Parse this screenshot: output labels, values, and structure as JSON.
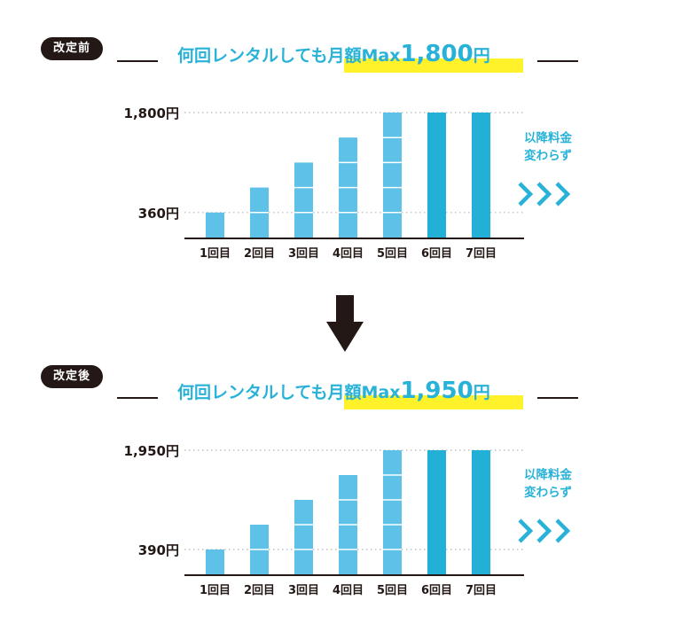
{
  "colors": {
    "dark": "#231815",
    "cyan": "#29b2d8",
    "bar_light": "#5dc1e8",
    "bar_dark": "#22b0d6",
    "highlight": "#fff12a"
  },
  "icons": {
    "chevrons": "triple-chevron-right-icon",
    "down_arrow": "down-arrow-icon"
  },
  "panels": [
    {
      "badge": "改定前",
      "headline_prefix": "何回レンタルしても月額Max",
      "headline_amount": "1,800",
      "headline_unit": "円",
      "side_note_line1": "以降料金",
      "side_note_line2": "変わらず"
    },
    {
      "badge": "改定後",
      "headline_prefix": "何回レンタルしても月額Max",
      "headline_amount": "1,950",
      "headline_unit": "円",
      "side_note_line1": "以降料金",
      "side_note_line2": "変わらず"
    }
  ],
  "chart_data": [
    {
      "type": "bar",
      "categories": [
        "1回目",
        "2回目",
        "3回目",
        "4回目",
        "5回目",
        "6回目",
        "7回目"
      ],
      "values": [
        360,
        720,
        1080,
        1440,
        1800,
        1800,
        1800
      ],
      "segment_value": 360,
      "highlighted_categories": [
        "6回目",
        "7回目"
      ],
      "y_tick_labels": [
        {
          "value": 1800,
          "label": "1,800円"
        },
        {
          "value": 360,
          "label": "360円"
        }
      ],
      "ylim": [
        0,
        1800
      ],
      "title": "",
      "xlabel": "",
      "ylabel": ""
    },
    {
      "type": "bar",
      "categories": [
        "1回目",
        "2回目",
        "3回目",
        "4回目",
        "5回目",
        "6回目",
        "7回目"
      ],
      "values": [
        390,
        780,
        1170,
        1560,
        1950,
        1950,
        1950
      ],
      "segment_value": 390,
      "highlighted_categories": [
        "6回目",
        "7回目"
      ],
      "y_tick_labels": [
        {
          "value": 1950,
          "label": "1,950円"
        },
        {
          "value": 390,
          "label": "390円"
        }
      ],
      "ylim": [
        0,
        1950
      ],
      "title": "",
      "xlabel": "",
      "ylabel": ""
    }
  ]
}
